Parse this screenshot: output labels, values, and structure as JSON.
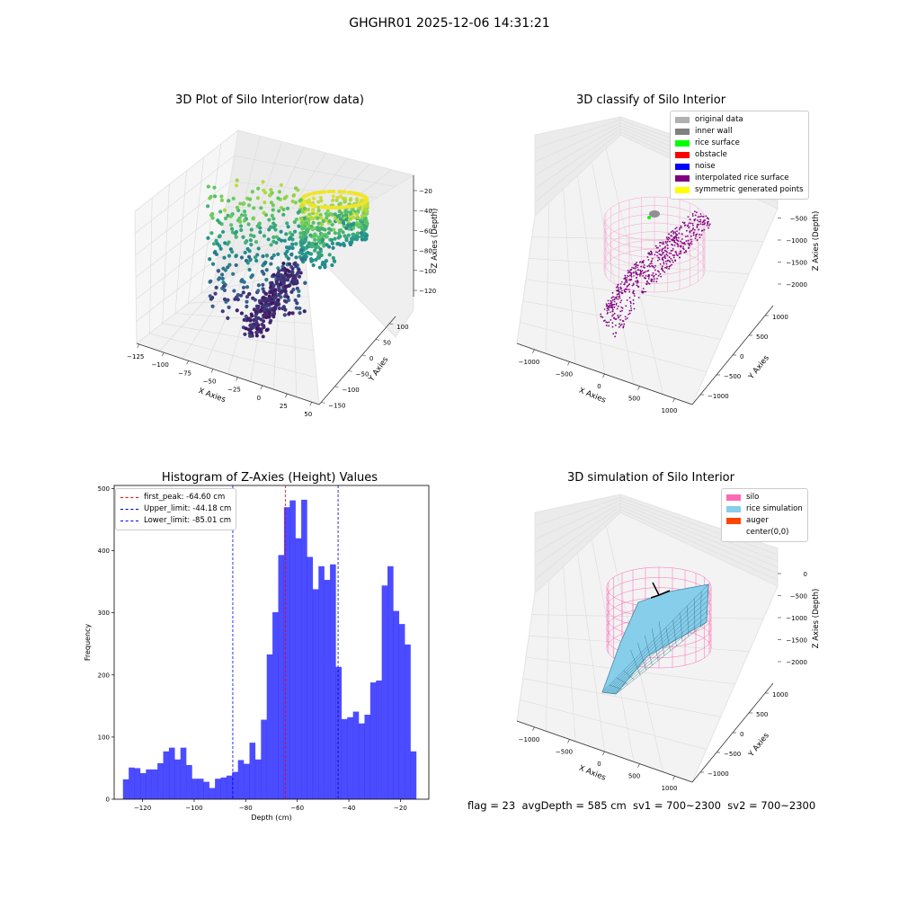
{
  "figure_title": "GHGHR01 2025-12-06 14:31:21",
  "footer": "flag = 23  avgDepth = 585 cm  sv1 = 700~2300  sv2 = 700~2300",
  "chart_data": [
    {
      "type": "scatter",
      "title": "3D Plot of Silo Interior(row data)",
      "xlabel": "X Axies",
      "ylabel": "Y Axies",
      "zlabel": "Z Axies (Depth)",
      "x_ticks": [
        "−125",
        "−100",
        "−75",
        "−50",
        "−25",
        "0",
        "25",
        "50"
      ],
      "y_ticks": [
        "−150",
        "−100",
        "−50",
        "0",
        "50",
        "100"
      ],
      "z_ticks": [
        "−20",
        "−40",
        "−60",
        "−80",
        "−100",
        "−120"
      ],
      "xlim": [
        -125,
        50
      ],
      "ylim": [
        -150,
        100
      ],
      "zlim": [
        -130,
        -15
      ],
      "colormap": "viridis"
    },
    {
      "type": "scatter",
      "title": "3D classify of Silo Interior",
      "xlabel": "X Axies",
      "ylabel": "Y Axies",
      "zlabel": "Z Axies (Depth)",
      "x_ticks": [
        "−1000",
        "−500",
        "0",
        "500",
        "1000"
      ],
      "y_ticks": [
        "−1000",
        "−500",
        "0",
        "500",
        "1000"
      ],
      "z_ticks": [
        "0",
        "−500",
        "−1000",
        "−1500",
        "−2000"
      ],
      "legend": [
        {
          "label": "original data",
          "color": "#b0b0b0"
        },
        {
          "label": "inner wall",
          "color": "#808080"
        },
        {
          "label": "rice surface",
          "color": "#00ff00"
        },
        {
          "label": "obstacle",
          "color": "#ff0000"
        },
        {
          "label": "noise",
          "color": "#0000ff"
        },
        {
          "label": "interpolated rice surface",
          "color": "#800080"
        },
        {
          "label": "symmetric generated points",
          "color": "#ffff00"
        }
      ]
    },
    {
      "type": "bar",
      "title": "Histogram of Z-Axies (Height) Values",
      "xlabel": "Depth (cm)",
      "ylabel": "Frequency",
      "xlim": [
        -131,
        -9
      ],
      "ylim": [
        0,
        505
      ],
      "x_ticks": [
        -120,
        -100,
        -80,
        -60,
        -40,
        -20
      ],
      "y_ticks": [
        0,
        100,
        200,
        300,
        400,
        500
      ],
      "bin_start": -127.6,
      "bin_width": 2.23,
      "values": [
        32,
        51,
        50,
        42,
        48,
        48,
        58,
        77,
        83,
        64,
        83,
        55,
        33,
        33,
        28,
        18,
        33,
        35,
        38,
        44,
        63,
        57,
        91,
        64,
        128,
        233,
        301,
        393,
        470,
        481,
        420,
        482,
        390,
        338,
        375,
        353,
        378,
        213,
        129,
        132,
        141,
        122,
        136,
        188,
        191,
        344,
        375,
        303,
        282,
        249,
        77
      ],
      "bar_color": "#0000ff",
      "lines": [
        {
          "label": "first_peak: -64.60 cm",
          "x": -64.6,
          "color": "#ff0000"
        },
        {
          "label": "Upper_limit: -44.18 cm",
          "x": -44.18,
          "color": "#0000aa"
        },
        {
          "label": "Lower_limit: -85.01 cm",
          "x": -85.01,
          "color": "#0000ff"
        }
      ]
    },
    {
      "type": "scatter",
      "title": "3D simulation of Silo Interior",
      "xlabel": "X Axies",
      "ylabel": "Y Axies",
      "zlabel": "Z Axies (Depth)",
      "x_ticks": [
        "−1000",
        "−500",
        "0",
        "500",
        "1000"
      ],
      "y_ticks": [
        "−1000",
        "−500",
        "0",
        "500",
        "1000"
      ],
      "z_ticks": [
        "0",
        "−500",
        "−1000",
        "−1500",
        "−2000"
      ],
      "legend": [
        {
          "label": "silo",
          "color": "#ff69b4"
        },
        {
          "label": "rice simulation",
          "color": "#87ceeb"
        },
        {
          "label": "auger",
          "color": "#ff4500"
        },
        {
          "label": "center(0,0)",
          "color": "#ffffff"
        }
      ]
    }
  ]
}
